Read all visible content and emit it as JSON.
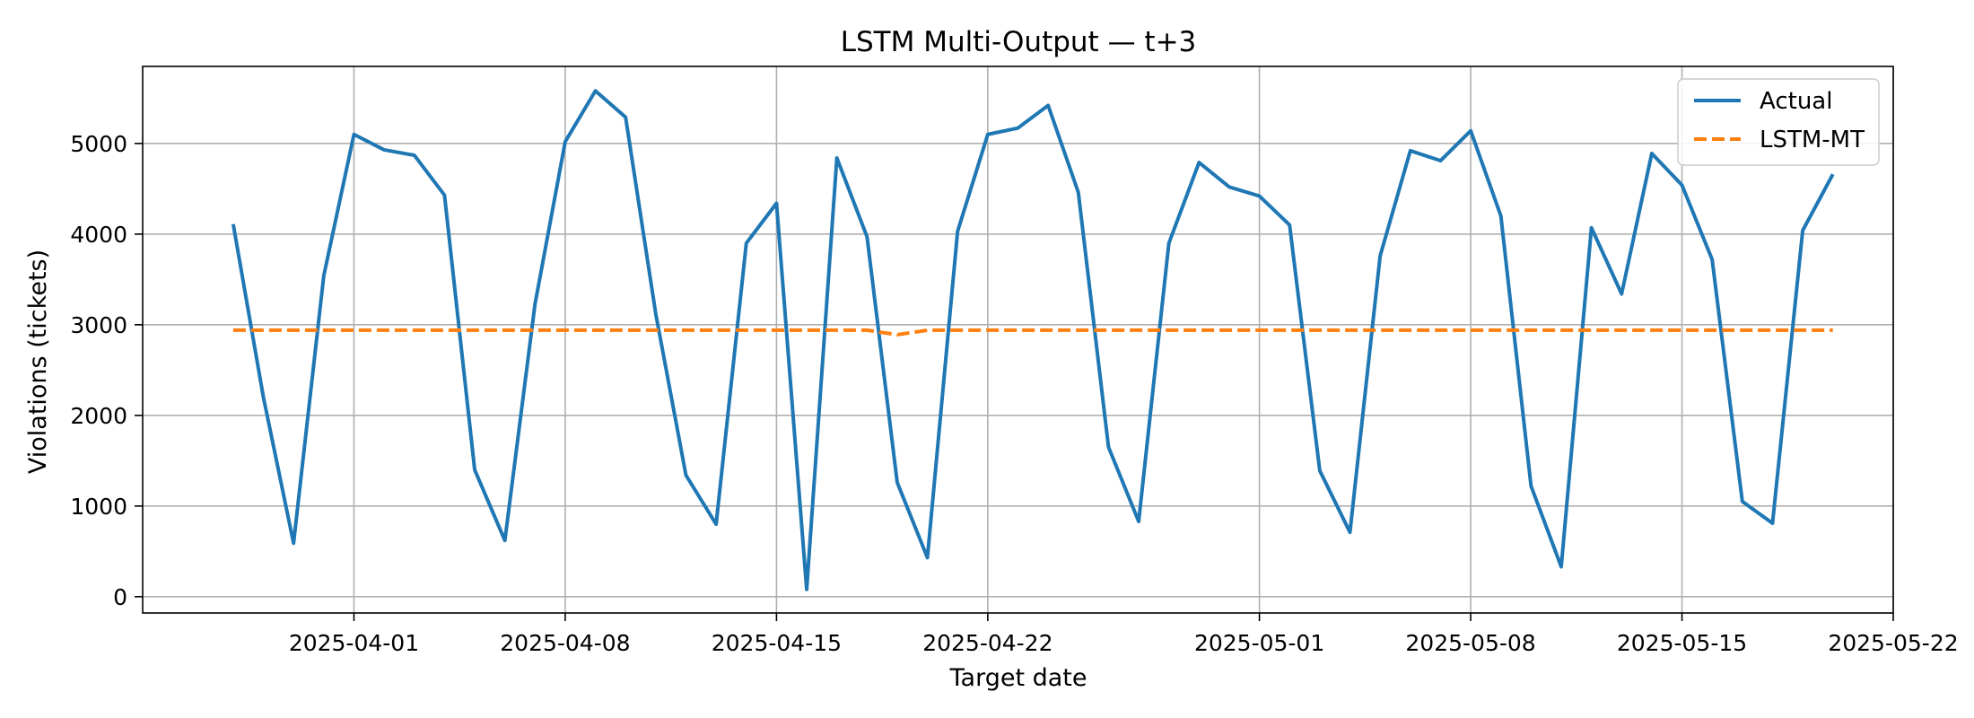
{
  "chart_data": {
    "type": "line",
    "title": "LSTM Multi-Output — t+3",
    "xlabel": "Target date",
    "ylabel": "Violations (tickets)",
    "x_ticks": [
      "2025-04-01",
      "2025-04-08",
      "2025-04-15",
      "2025-04-22",
      "2025-05-01",
      "2025-05-08",
      "2025-05-15",
      "2025-05-22"
    ],
    "y_ticks": [
      0,
      1000,
      2000,
      3000,
      4000,
      5000
    ],
    "xlim": [
      "2025-03-25",
      "2025-05-22"
    ],
    "ylim": [
      -180,
      5850
    ],
    "grid": true,
    "legend_position": "top-right",
    "colors": {
      "actual": "#1f77b4",
      "forecast": "#ff7f0e"
    },
    "x": [
      "2025-03-28",
      "2025-03-29",
      "2025-03-30",
      "2025-03-31",
      "2025-04-01",
      "2025-04-02",
      "2025-04-03",
      "2025-04-04",
      "2025-04-05",
      "2025-04-06",
      "2025-04-07",
      "2025-04-08",
      "2025-04-09",
      "2025-04-10",
      "2025-04-11",
      "2025-04-12",
      "2025-04-13",
      "2025-04-14",
      "2025-04-15",
      "2025-04-16",
      "2025-04-17",
      "2025-04-18",
      "2025-04-19",
      "2025-04-20",
      "2025-04-21",
      "2025-04-22",
      "2025-04-23",
      "2025-04-24",
      "2025-04-25",
      "2025-04-26",
      "2025-04-27",
      "2025-04-28",
      "2025-04-29",
      "2025-04-30",
      "2025-05-01",
      "2025-05-02",
      "2025-05-03",
      "2025-05-04",
      "2025-05-05",
      "2025-05-06",
      "2025-05-07",
      "2025-05-08",
      "2025-05-09",
      "2025-05-10",
      "2025-05-11",
      "2025-05-12",
      "2025-05-13",
      "2025-05-14",
      "2025-05-15",
      "2025-05-16",
      "2025-05-17",
      "2025-05-18",
      "2025-05-19",
      "2025-05-20"
    ],
    "series": [
      {
        "name": "Actual",
        "style": "solid",
        "values": [
          4110,
          2200,
          590,
          3540,
          5100,
          4930,
          4870,
          4430,
          1400,
          620,
          3230,
          5020,
          5580,
          5290,
          3120,
          1340,
          800,
          3900,
          4340,
          80,
          4840,
          3970,
          1260,
          430,
          4030,
          5100,
          5170,
          5420,
          4460,
          1650,
          830,
          3900,
          4790,
          4520,
          4420,
          4100,
          1390,
          710,
          3760,
          4920,
          4810,
          5140,
          4200,
          1220,
          330,
          4070,
          3340,
          4890,
          4540,
          3720,
          1050,
          810,
          4040,
          4660
        ]
      },
      {
        "name": "LSTM-MT",
        "style": "dashed",
        "values": [
          2940,
          2940,
          2940,
          2940,
          2940,
          2940,
          2940,
          2940,
          2940,
          2940,
          2940,
          2940,
          2940,
          2940,
          2940,
          2940,
          2940,
          2940,
          2940,
          2940,
          2940,
          2940,
          2890,
          2940,
          2940,
          2940,
          2940,
          2940,
          2940,
          2940,
          2940,
          2940,
          2940,
          2940,
          2940,
          2940,
          2940,
          2940,
          2940,
          2940,
          2940,
          2940,
          2940,
          2940,
          2940,
          2940,
          2940,
          2940,
          2940,
          2940,
          2940,
          2940,
          2940,
          2940
        ]
      }
    ]
  }
}
